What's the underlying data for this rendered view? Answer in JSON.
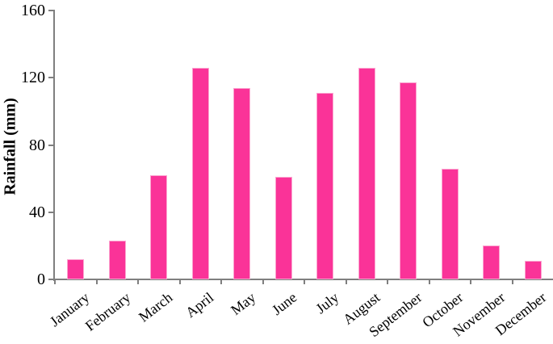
{
  "chart_data": {
    "type": "bar",
    "title": "",
    "xlabel": "",
    "ylabel": "Rainfall (mm)",
    "categories": [
      "January",
      "February",
      "March",
      "April",
      "May",
      "June",
      "July",
      "August",
      "September",
      "October",
      "November",
      "December"
    ],
    "values": [
      12,
      23,
      62,
      126,
      114,
      61,
      111,
      126,
      117,
      66,
      20,
      11
    ],
    "ylim": [
      0,
      160
    ],
    "yticks": [
      0,
      40,
      80,
      120,
      160
    ],
    "grid": false,
    "legend": false,
    "bar_color": "#FA3398",
    "bar_border_color": "#FBA6D0",
    "axis_color": "#7F7F7F",
    "text_color": "#000000"
  }
}
